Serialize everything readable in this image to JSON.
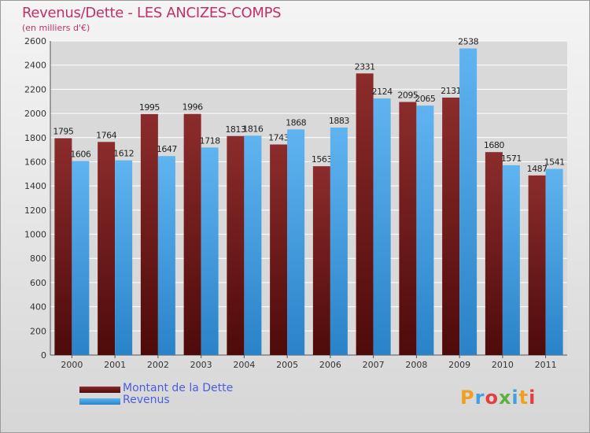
{
  "brand": {
    "logo_text": "Proxiti",
    "logo_colors": [
      "#f0a020",
      "#40a0e0",
      "#e04040",
      "#60b040",
      "#40a0e0",
      "#f0a020",
      "#e04040"
    ]
  },
  "colors": {
    "title": "#c0306a",
    "series_debt_top": "#8c2c2c",
    "series_debt_bottom": "#4e0a0a",
    "series_revenue_top": "#5fb4f0",
    "series_revenue_bottom": "#2a82c8",
    "legend_text": "#4a5de0",
    "grid": "#ffffff"
  },
  "chart_data": {
    "type": "bar",
    "title": "Revenus/Dette - LES ANCIZES-COMPS",
    "subtitle": "(en milliers d'€)",
    "xlabel": "",
    "ylabel": "",
    "categories": [
      "2000",
      "2001",
      "2002",
      "2003",
      "2004",
      "2005",
      "2006",
      "2007",
      "2008",
      "2009",
      "2010",
      "2011"
    ],
    "series": [
      {
        "name": "Montant de la Dette",
        "values": [
          1795,
          1764,
          1995,
          1996,
          1813,
          1743,
          1563,
          2331,
          2095,
          2131,
          1680,
          1487
        ]
      },
      {
        "name": "Revenus",
        "values": [
          1606,
          1612,
          1647,
          1718,
          1816,
          1868,
          1883,
          2124,
          2065,
          2538,
          1571,
          1541
        ]
      }
    ],
    "ylim": [
      0,
      2600
    ],
    "yticks": [
      0,
      200,
      400,
      600,
      800,
      1000,
      1200,
      1400,
      1600,
      1800,
      2000,
      2200,
      2400,
      2600
    ],
    "grid": true,
    "legend_position": "bottom-left"
  }
}
